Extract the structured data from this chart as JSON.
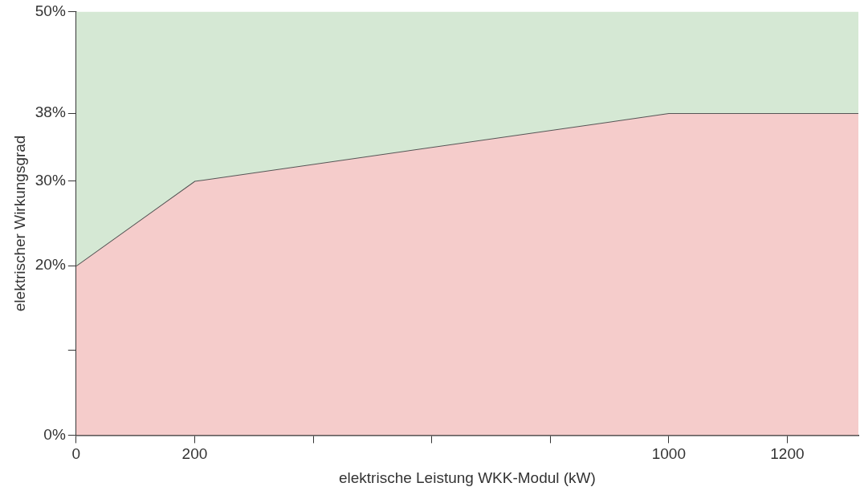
{
  "chart_data": {
    "type": "area",
    "xlabel": "elektrische Leistung WKK-Modul (kW)",
    "ylabel": "elektrischer Wirkungsgrad",
    "x": [
      0,
      200,
      1000,
      1320
    ],
    "series": [
      {
        "color": "#f5cccb",
        "values": [
          20,
          30,
          38,
          38
        ]
      },
      {
        "color": "#d5e8d4",
        "values": [
          50,
          50,
          50,
          50
        ]
      }
    ],
    "xlim": [
      0,
      1320
    ],
    "xticks": [
      0,
      200,
      {
        "value": 400,
        "label": null
      },
      {
        "value": 600,
        "label": null
      },
      {
        "value": 800,
        "label": null
      },
      1000,
      1200
    ],
    "ylim": [
      0,
      50
    ],
    "yticks": [
      {
        "value": 0,
        "label": "0%"
      },
      {
        "value": 10,
        "label": null
      },
      {
        "value": 20,
        "label": "20%"
      },
      {
        "value": 30,
        "label": "30%"
      },
      {
        "value": 38,
        "label": "38%"
      },
      {
        "value": 50,
        "label": "50%"
      }
    ],
    "grid": false,
    "legend": false
  }
}
